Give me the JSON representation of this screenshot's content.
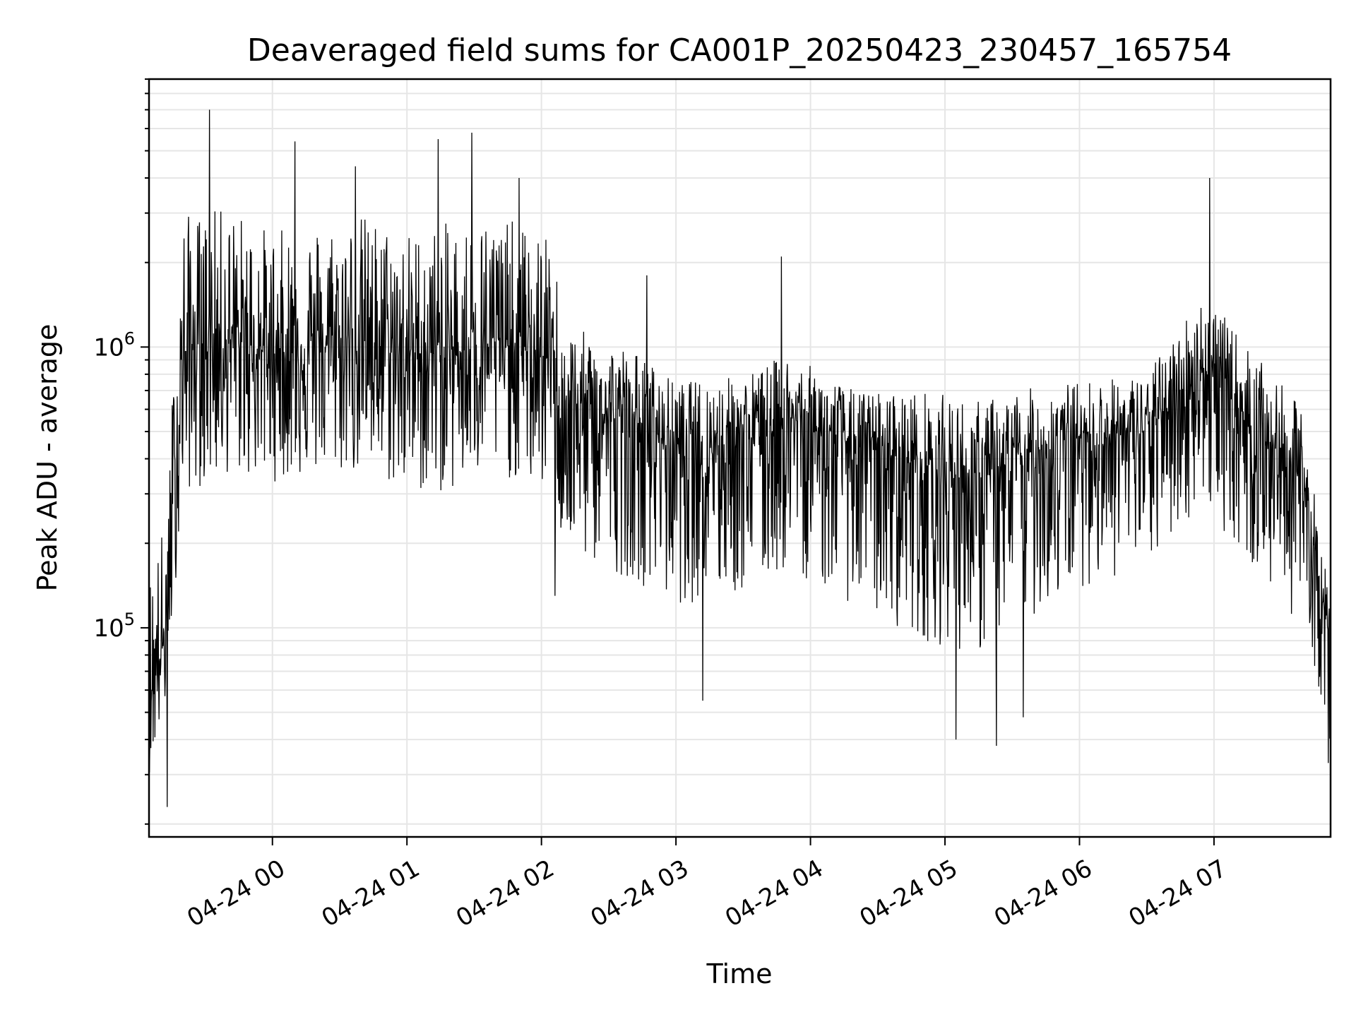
{
  "chart_data": {
    "type": "line",
    "title": "Deaveraged field sums for CA001P_20250423_230457_165754",
    "xlabel": "Time",
    "ylabel": "Peak ADU - average",
    "yscale": "log",
    "ylim": [
      18000,
      9000000
    ],
    "xlim": [
      "2025-04-23 23:04:57",
      "2025-04-24 07:52:00"
    ],
    "grid": true,
    "line_color": "#000000",
    "x_ticks": [
      {
        "t": "2025-04-24 00:00",
        "label": "04-24 00"
      },
      {
        "t": "2025-04-24 01:00",
        "label": "04-24 01"
      },
      {
        "t": "2025-04-24 02:00",
        "label": "04-24 02"
      },
      {
        "t": "2025-04-24 03:00",
        "label": "04-24 03"
      },
      {
        "t": "2025-04-24 04:00",
        "label": "04-24 04"
      },
      {
        "t": "2025-04-24 05:00",
        "label": "04-24 05"
      },
      {
        "t": "2025-04-24 06:00",
        "label": "04-24 06"
      },
      {
        "t": "2025-04-24 07:00",
        "label": "04-24 07"
      }
    ],
    "y_ticks": [
      {
        "value": 100000,
        "base": "10",
        "exp": "5"
      },
      {
        "value": 1000000,
        "base": "10",
        "exp": "6"
      }
    ],
    "series": [
      {
        "envelope": [
          {
            "t": "2025-04-23 23:04:57",
            "center": 60000,
            "low": 30000,
            "high": 160000
          },
          {
            "t": "2025-04-23 23:12:00",
            "center": 90000,
            "low": 50000,
            "high": 250000
          },
          {
            "t": "2025-04-23 23:20:00",
            "center": 900000,
            "low": 300000,
            "high": 3000000
          },
          {
            "t": "2025-04-23 23:30:00",
            "center": 1100000,
            "low": 320000,
            "high": 3000000
          },
          {
            "t": "2025-04-23 23:40:00",
            "center": 1050000,
            "low": 350000,
            "high": 3200000
          },
          {
            "t": "2025-04-24 00:00",
            "center": 950000,
            "low": 330000,
            "high": 2600000
          },
          {
            "t": "2025-04-24 00:20",
            "center": 1000000,
            "low": 350000,
            "high": 2800000
          },
          {
            "t": "2025-04-24 00:40",
            "center": 1050000,
            "low": 350000,
            "high": 3000000
          },
          {
            "t": "2025-04-24 01:00",
            "center": 950000,
            "low": 300000,
            "high": 2600000
          },
          {
            "t": "2025-04-24 01:20",
            "center": 950000,
            "low": 300000,
            "high": 2800000
          },
          {
            "t": "2025-04-24 01:40",
            "center": 1050000,
            "low": 350000,
            "high": 3000000
          },
          {
            "t": "2025-04-24 02:05",
            "center": 900000,
            "low": 300000,
            "high": 2400000
          },
          {
            "t": "2025-04-24 02:10",
            "center": 600000,
            "low": 180000,
            "high": 1200000
          },
          {
            "t": "2025-04-24 02:40",
            "center": 550000,
            "low": 150000,
            "high": 1000000
          },
          {
            "t": "2025-04-24 03:00",
            "center": 450000,
            "low": 120000,
            "high": 750000
          },
          {
            "t": "2025-04-24 03:30",
            "center": 480000,
            "low": 130000,
            "high": 800000
          },
          {
            "t": "2025-04-24 03:50",
            "center": 560000,
            "low": 160000,
            "high": 950000
          },
          {
            "t": "2025-04-24 04:20",
            "center": 450000,
            "low": 120000,
            "high": 700000
          },
          {
            "t": "2025-04-24 04:50",
            "center": 380000,
            "low": 90000,
            "high": 700000
          },
          {
            "t": "2025-04-24 05:15",
            "center": 330000,
            "low": 80000,
            "high": 650000
          },
          {
            "t": "2025-04-24 05:40",
            "center": 430000,
            "low": 110000,
            "high": 720000
          },
          {
            "t": "2025-04-24 06:00",
            "center": 480000,
            "low": 140000,
            "high": 760000
          },
          {
            "t": "2025-04-24 06:30",
            "center": 500000,
            "low": 160000,
            "high": 800000
          },
          {
            "t": "2025-04-24 06:55",
            "center": 850000,
            "low": 280000,
            "high": 1600000
          },
          {
            "t": "2025-04-24 07:20",
            "center": 500000,
            "low": 150000,
            "high": 900000
          },
          {
            "t": "2025-04-24 07:40",
            "center": 340000,
            "low": 100000,
            "high": 600000
          },
          {
            "t": "2025-04-24 07:47",
            "center": 140000,
            "low": 60000,
            "high": 220000
          },
          {
            "t": "2025-04-24 07:52",
            "center": 90000,
            "low": 35000,
            "high": 130000
          }
        ],
        "spikes": [
          {
            "t": "2025-04-23 23:13:00",
            "value": 23000
          },
          {
            "t": "2025-04-23 23:32:00",
            "value": 7000000
          },
          {
            "t": "2025-04-24 00:10:00",
            "value": 5400000
          },
          {
            "t": "2025-04-24 00:37:00",
            "value": 4400000
          },
          {
            "t": "2025-04-24 01:14:00",
            "value": 5500000
          },
          {
            "t": "2025-04-24 01:29:00",
            "value": 5800000
          },
          {
            "t": "2025-04-24 01:50:00",
            "value": 4000000
          },
          {
            "t": "2025-04-24 02:06:00",
            "value": 130000
          },
          {
            "t": "2025-04-24 02:47:00",
            "value": 1800000
          },
          {
            "t": "2025-04-24 03:12:00",
            "value": 55000
          },
          {
            "t": "2025-04-24 03:47:00",
            "value": 2100000
          },
          {
            "t": "2025-04-24 05:05:00",
            "value": 40000
          },
          {
            "t": "2025-04-24 05:23:00",
            "value": 38000
          },
          {
            "t": "2025-04-24 05:35:00",
            "value": 48000
          },
          {
            "t": "2025-04-24 06:58:00",
            "value": 4000000
          },
          {
            "t": "2025-04-24 07:51:00",
            "value": 33000
          }
        ]
      }
    ]
  }
}
